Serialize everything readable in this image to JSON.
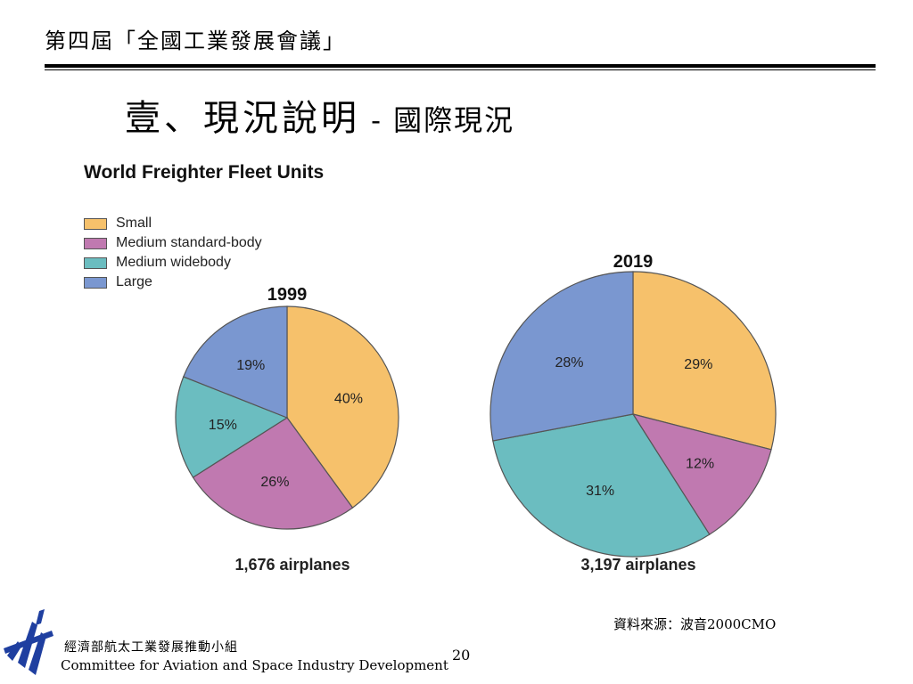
{
  "header": {
    "title": "第四屆「全國工業發展會議」"
  },
  "slide": {
    "title_main": "壹、現況說明",
    "title_sep": " - ",
    "title_sub": "國際現況"
  },
  "chart_data": {
    "type": "pie",
    "title": "World Freighter Fleet Units",
    "legend": [
      "Small",
      "Medium standard-body",
      "Medium widebody",
      "Large"
    ],
    "legend_placement": "top-left",
    "colors": {
      "Small": "#F6C16B",
      "Medium standard-body": "#C079B0",
      "Medium widebody": "#6BBDC0",
      "Large": "#7A97D0"
    },
    "pies": [
      {
        "title": "1999",
        "caption": "1,676 airplanes",
        "slices": [
          {
            "name": "Small",
            "value": 40,
            "label": "40%"
          },
          {
            "name": "Medium standard-body",
            "value": 26,
            "label": "26%"
          },
          {
            "name": "Medium widebody",
            "value": 15,
            "label": "15%"
          },
          {
            "name": "Large",
            "value": 19,
            "label": "19%"
          }
        ]
      },
      {
        "title": "2019",
        "caption": "3,197 airplanes",
        "slices": [
          {
            "name": "Small",
            "value": 29,
            "label": "29%"
          },
          {
            "name": "Medium standard-body",
            "value": 12,
            "label": "12%"
          },
          {
            "name": "Medium widebody",
            "value": 31,
            "label": "31%"
          },
          {
            "name": "Large",
            "value": 28,
            "label": "28%"
          }
        ]
      }
    ]
  },
  "footer": {
    "source": "資料來源：波音2000CMO",
    "org_cn": "經濟部航太工業發展推動小組",
    "org_en": "Committee for Aviation and Space Industry Development",
    "page_number": "20"
  }
}
